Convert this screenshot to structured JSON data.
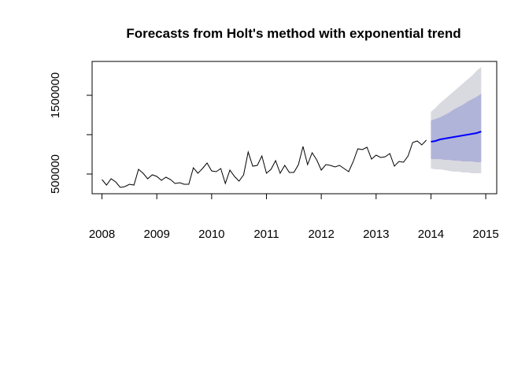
{
  "chart_data": {
    "type": "line",
    "title": "Forecasts from Holt's method with exponential trend",
    "xlabel": "",
    "ylabel": "",
    "xlim": [
      2007.82,
      2015.2
    ],
    "ylim": [
      250000,
      1930000
    ],
    "x_ticks": [
      2008,
      2009,
      2010,
      2011,
      2012,
      2013,
      2014,
      2015
    ],
    "x_tick_labels": [
      "2008",
      "2009",
      "2010",
      "2011",
      "2012",
      "2013",
      "2014",
      "2015"
    ],
    "y_ticks": [
      500000,
      1000000,
      1500000
    ],
    "y_tick_labels": [
      "500000",
      "",
      "1500000"
    ],
    "colors": {
      "actual": "#000000",
      "forecast": "#0000ff",
      "band80": "#b0b4d8",
      "band95": "#d9d9e0"
    },
    "series": [
      {
        "role": "actual",
        "start": 2008.0,
        "frequency": 12,
        "values": [
          430000,
          360000,
          440000,
          400000,
          330000,
          340000,
          370000,
          360000,
          560000,
          510000,
          440000,
          490000,
          470000,
          420000,
          460000,
          430000,
          380000,
          390000,
          370000,
          370000,
          580000,
          510000,
          570000,
          640000,
          540000,
          530000,
          570000,
          380000,
          550000,
          470000,
          410000,
          490000,
          780000,
          600000,
          610000,
          730000,
          510000,
          560000,
          670000,
          510000,
          610000,
          520000,
          520000,
          620000,
          850000,
          620000,
          770000,
          680000,
          550000,
          620000,
          610000,
          590000,
          610000,
          570000,
          530000,
          660000,
          820000,
          810000,
          840000,
          690000,
          740000,
          710000,
          720000,
          760000,
          600000,
          660000,
          650000,
          730000,
          900000,
          920000,
          870000,
          930000
        ]
      },
      {
        "role": "forecast",
        "start": 2014.0,
        "frequency": 12,
        "values": [
          910000,
          920000,
          940000,
          950000,
          960000,
          970000,
          980000,
          990000,
          1000000,
          1010000,
          1020000,
          1040000
        ],
        "lo80": [
          690000,
          690000,
          690000,
          680000,
          680000,
          670000,
          670000,
          660000,
          660000,
          660000,
          650000,
          650000
        ],
        "hi80": [
          1180000,
          1200000,
          1220000,
          1250000,
          1280000,
          1320000,
          1350000,
          1380000,
          1420000,
          1450000,
          1480000,
          1520000
        ],
        "lo95": [
          570000,
          560000,
          560000,
          550000,
          540000,
          530000,
          530000,
          520000,
          520000,
          510000,
          510000,
          510000
        ],
        "hi95": [
          1290000,
          1340000,
          1400000,
          1450000,
          1500000,
          1550000,
          1600000,
          1650000,
          1700000,
          1750000,
          1810000,
          1860000
        ]
      }
    ]
  }
}
